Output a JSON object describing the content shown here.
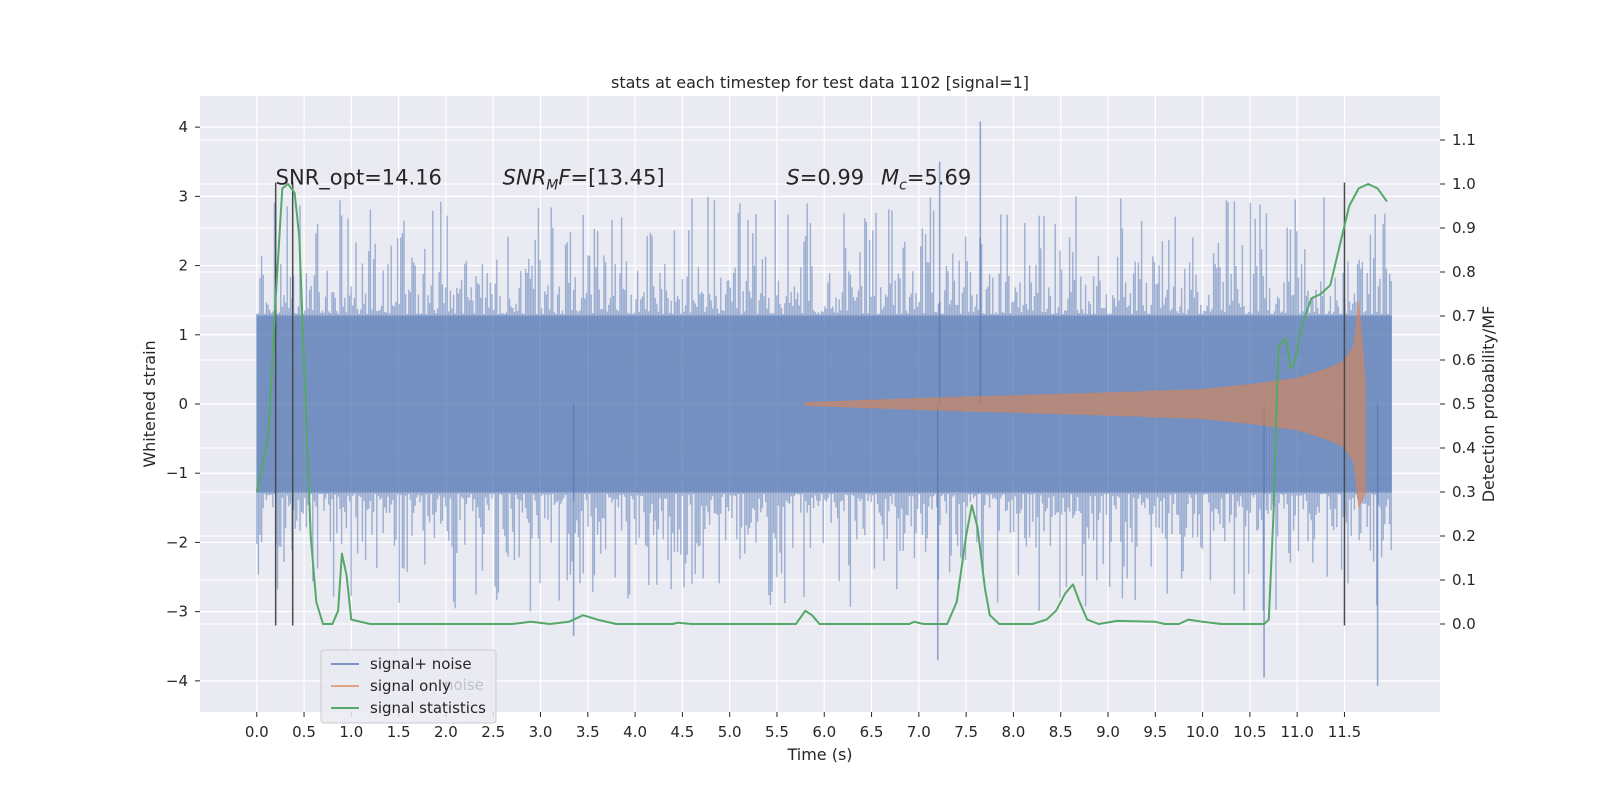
{
  "chart_data": {
    "type": "line",
    "title": "stats at each timestep for test data 1102 [signal=1]",
    "xlabel": "Time (s)",
    "ylabel": "Whitened strain",
    "y2label": "Detection probability/MF",
    "xlim": [
      -0.6,
      12.51
    ],
    "ylim": [
      -4.45,
      4.45
    ],
    "y2lim": [
      -0.2,
      1.2
    ],
    "x_ticks": [
      0.0,
      0.5,
      1.0,
      1.5,
      2.0,
      2.5,
      3.0,
      3.5,
      4.0,
      4.5,
      5.0,
      5.5,
      6.0,
      6.5,
      7.0,
      7.5,
      8.0,
      8.5,
      9.0,
      9.5,
      10.0,
      10.5,
      11.0,
      11.5
    ],
    "x_tick_labels": [
      "0.0",
      "0.5",
      "1.0",
      "1.5",
      "2.0",
      "2.5",
      "3.0",
      "3.5",
      "4.0",
      "4.5",
      "5.0",
      "5.5",
      "6.0",
      "6.5",
      "7.0",
      "7.5",
      "8.0",
      "8.5",
      "9.0",
      "9.5",
      "10.0",
      "10.5",
      "11.0",
      "11.5"
    ],
    "y_ticks": [
      -4,
      -3,
      -2,
      -1,
      0,
      1,
      2,
      3,
      4
    ],
    "y_tick_labels": [
      "−4",
      "−3",
      "−2",
      "−1",
      "0",
      "1",
      "2",
      "3",
      "4"
    ],
    "y2_ticks": [
      0.0,
      0.1,
      0.2,
      0.3,
      0.4,
      0.5,
      0.6,
      0.7,
      0.8,
      0.9,
      1.0,
      1.1
    ],
    "y2_tick_labels": [
      "0.0",
      "0.1",
      "0.2",
      "0.3",
      "0.4",
      "0.5",
      "0.6",
      "0.7",
      "0.8",
      "0.9",
      "1.0",
      "1.1"
    ],
    "grid": true,
    "legend_placement": "lower-left",
    "colors": {
      "signal_noise": "#4c72b0",
      "signal_only": "#dd8452",
      "statistics": "#55a868",
      "vlines": "#4a4a4a",
      "background": "#eaeaf2"
    },
    "series": [
      {
        "name": "signal+ noise",
        "axis": "left",
        "kind": "noise_band",
        "core_envelope": [
          -1.28,
          1.28
        ],
        "typical_envelope": [
          -2.0,
          2.0
        ],
        "x_range": [
          0.0,
          12.0
        ],
        "notable_peaks": [
          {
            "x": 7.65,
            "y": 4.08
          },
          {
            "x": 7.22,
            "y": 3.5
          },
          {
            "x": 3.35,
            "y": -3.35
          },
          {
            "x": 7.2,
            "y": -3.7
          },
          {
            "x": 10.65,
            "y": -3.95
          },
          {
            "x": 11.85,
            "y": -4.07
          }
        ]
      },
      {
        "name": "signal only",
        "axis": "left",
        "kind": "chirp",
        "x_range": [
          5.8,
          11.72
        ],
        "envelope": [
          {
            "x": 5.8,
            "y": 0.02
          },
          {
            "x": 7.0,
            "y": 0.08
          },
          {
            "x": 8.0,
            "y": 0.12
          },
          {
            "x": 9.0,
            "y": 0.16
          },
          {
            "x": 10.0,
            "y": 0.21
          },
          {
            "x": 10.5,
            "y": 0.28
          },
          {
            "x": 11.0,
            "y": 0.37
          },
          {
            "x": 11.3,
            "y": 0.5
          },
          {
            "x": 11.5,
            "y": 0.62
          },
          {
            "x": 11.6,
            "y": 0.85
          },
          {
            "x": 11.65,
            "y": 1.5
          },
          {
            "x": 11.72,
            "y": 0.3
          }
        ]
      },
      {
        "name": "signal statistics",
        "axis": "right",
        "kind": "line",
        "points": [
          {
            "x": 0.0,
            "y": 0.3
          },
          {
            "x": 0.12,
            "y": 0.42
          },
          {
            "x": 0.2,
            "y": 0.74
          },
          {
            "x": 0.27,
            "y": 0.99
          },
          {
            "x": 0.33,
            "y": 1.0
          },
          {
            "x": 0.4,
            "y": 0.98
          },
          {
            "x": 0.45,
            "y": 0.88
          },
          {
            "x": 0.5,
            "y": 0.6
          },
          {
            "x": 0.57,
            "y": 0.2
          },
          {
            "x": 0.63,
            "y": 0.05
          },
          {
            "x": 0.7,
            "y": 0.0
          },
          {
            "x": 0.8,
            "y": 0.0
          },
          {
            "x": 0.86,
            "y": 0.03
          },
          {
            "x": 0.9,
            "y": 0.16
          },
          {
            "x": 0.95,
            "y": 0.11
          },
          {
            "x": 1.0,
            "y": 0.01
          },
          {
            "x": 1.2,
            "y": 0.0
          },
          {
            "x": 2.0,
            "y": 0.0
          },
          {
            "x": 2.3,
            "y": 0.0
          },
          {
            "x": 2.7,
            "y": 0.0
          },
          {
            "x": 2.9,
            "y": 0.005
          },
          {
            "x": 3.1,
            "y": 0.0
          },
          {
            "x": 3.3,
            "y": 0.005
          },
          {
            "x": 3.45,
            "y": 0.02
          },
          {
            "x": 3.6,
            "y": 0.01
          },
          {
            "x": 3.8,
            "y": 0.0
          },
          {
            "x": 4.4,
            "y": 0.0
          },
          {
            "x": 4.45,
            "y": 0.003
          },
          {
            "x": 4.6,
            "y": 0.0
          },
          {
            "x": 5.7,
            "y": 0.0
          },
          {
            "x": 5.8,
            "y": 0.03
          },
          {
            "x": 5.87,
            "y": 0.02
          },
          {
            "x": 5.95,
            "y": 0.0
          },
          {
            "x": 6.9,
            "y": 0.0
          },
          {
            "x": 6.95,
            "y": 0.005
          },
          {
            "x": 7.05,
            "y": 0.0
          },
          {
            "x": 7.3,
            "y": 0.0
          },
          {
            "x": 7.4,
            "y": 0.05
          },
          {
            "x": 7.5,
            "y": 0.2
          },
          {
            "x": 7.56,
            "y": 0.27
          },
          {
            "x": 7.62,
            "y": 0.22
          },
          {
            "x": 7.7,
            "y": 0.08
          },
          {
            "x": 7.75,
            "y": 0.02
          },
          {
            "x": 7.85,
            "y": 0.0
          },
          {
            "x": 8.2,
            "y": 0.0
          },
          {
            "x": 8.35,
            "y": 0.01
          },
          {
            "x": 8.45,
            "y": 0.03
          },
          {
            "x": 8.55,
            "y": 0.07
          },
          {
            "x": 8.63,
            "y": 0.09
          },
          {
            "x": 8.7,
            "y": 0.05
          },
          {
            "x": 8.78,
            "y": 0.01
          },
          {
            "x": 8.9,
            "y": 0.0
          },
          {
            "x": 9.1,
            "y": 0.007
          },
          {
            "x": 9.5,
            "y": 0.005
          },
          {
            "x": 9.6,
            "y": 0.0
          },
          {
            "x": 9.75,
            "y": 0.0
          },
          {
            "x": 9.85,
            "y": 0.01
          },
          {
            "x": 10.0,
            "y": 0.005
          },
          {
            "x": 10.2,
            "y": 0.0
          },
          {
            "x": 10.5,
            "y": 0.0
          },
          {
            "x": 10.65,
            "y": 0.0
          },
          {
            "x": 10.7,
            "y": 0.01
          },
          {
            "x": 10.75,
            "y": 0.25
          },
          {
            "x": 10.8,
            "y": 0.63
          },
          {
            "x": 10.88,
            "y": 0.65
          },
          {
            "x": 10.93,
            "y": 0.58
          },
          {
            "x": 10.98,
            "y": 0.6
          },
          {
            "x": 11.05,
            "y": 0.68
          },
          {
            "x": 11.15,
            "y": 0.74
          },
          {
            "x": 11.25,
            "y": 0.75
          },
          {
            "x": 11.35,
            "y": 0.77
          },
          {
            "x": 11.45,
            "y": 0.86
          },
          {
            "x": 11.55,
            "y": 0.95
          },
          {
            "x": 11.65,
            "y": 0.99
          },
          {
            "x": 11.75,
            "y": 1.0
          },
          {
            "x": 11.85,
            "y": 0.99
          },
          {
            "x": 11.95,
            "y": 0.96
          }
        ]
      }
    ],
    "vertical_lines": [
      {
        "x": 0.2,
        "y_range": [
          -3.2,
          3.2
        ]
      },
      {
        "x": 0.38,
        "y_range": [
          -3.2,
          3.2
        ]
      },
      {
        "x": 11.5,
        "y_range": [
          -3.2,
          3.2
        ]
      }
    ],
    "annotations": [
      {
        "id": "snr_opt",
        "x": 0.2,
        "y": 3.17,
        "text": "SNR_opt=14.16",
        "italic": false
      },
      {
        "id": "snr_mf",
        "x": 2.6,
        "y": 3.17,
        "base": "SNR",
        "sub": "M",
        "after": "F=[13.45]"
      },
      {
        "id": "s_value",
        "x": 5.6,
        "y": 3.17,
        "base": "S",
        "after": "=0.99"
      },
      {
        "id": "mc_value",
        "x": 6.6,
        "y": 3.17,
        "base": "M",
        "sub": "c",
        "after": "=5.69"
      }
    ],
    "legend": [
      {
        "label": "signal+ noise",
        "series": "signal_noise"
      },
      {
        "label": "signal only",
        "series": "signal_only"
      },
      {
        "label": "signal statistics",
        "series": "statistics"
      }
    ],
    "legend_ghost_text": "noise"
  }
}
